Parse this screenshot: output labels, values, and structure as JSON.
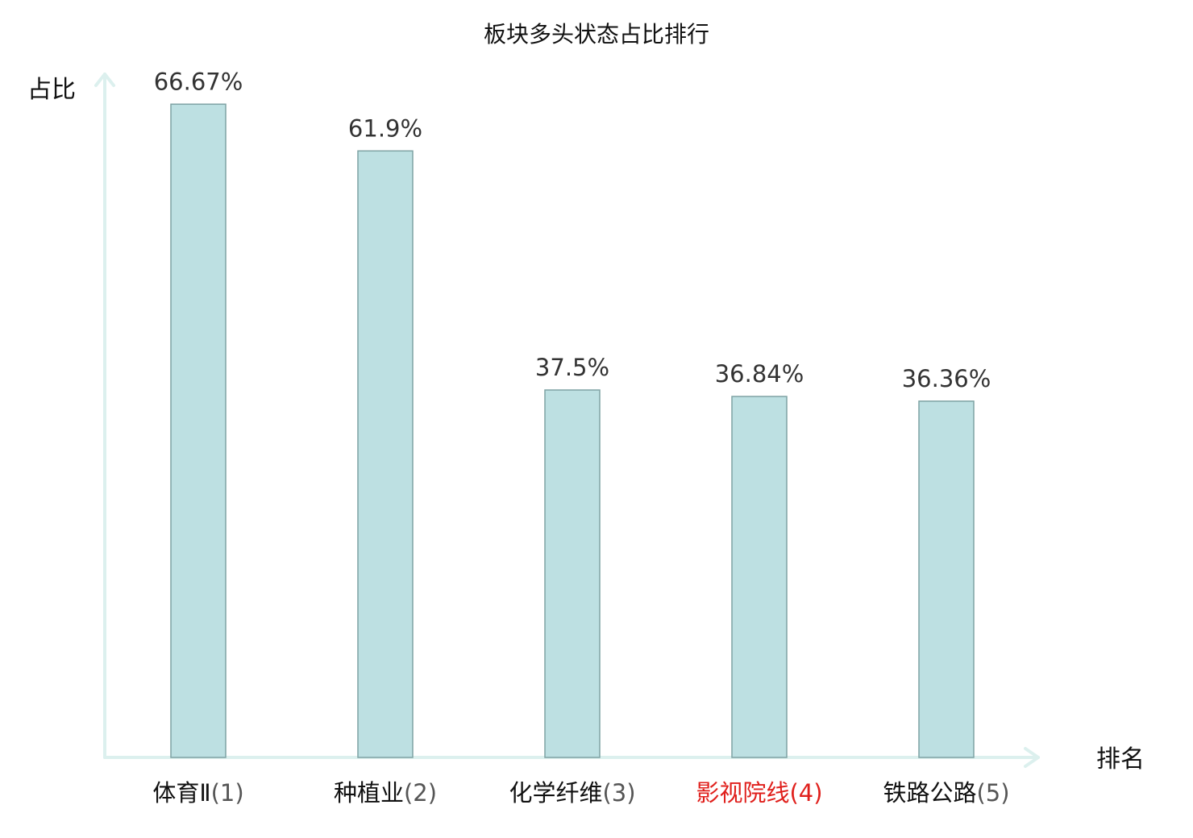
{
  "chart_data": {
    "type": "bar",
    "title": "板块多头状态占比排行",
    "ylabel": "占比",
    "xlabel": "排名",
    "categories": [
      {
        "name": "体育Ⅱ",
        "rank": "(1)",
        "highlight": false
      },
      {
        "name": "种植业",
        "rank": "(2)",
        "highlight": false
      },
      {
        "name": "化学纤维",
        "rank": "(3)",
        "highlight": false
      },
      {
        "name": "影视院线",
        "rank": "(4)",
        "highlight": true
      },
      {
        "name": "铁路公路",
        "rank": "(5)",
        "highlight": false
      }
    ],
    "values": [
      66.67,
      61.9,
      37.5,
      36.84,
      36.36
    ],
    "value_labels": [
      "66.67%",
      "61.9%",
      "37.5%",
      "36.84%",
      "36.36%"
    ],
    "ylim": [
      0,
      70
    ],
    "grid": false,
    "colors": {
      "bar_fill": "#bde0e2",
      "bar_stroke": "#7fa3a4",
      "axis": "#dcf0ee",
      "highlight_text": "#e0201c",
      "normal_text": "#111111",
      "value_text": "#333333"
    }
  }
}
